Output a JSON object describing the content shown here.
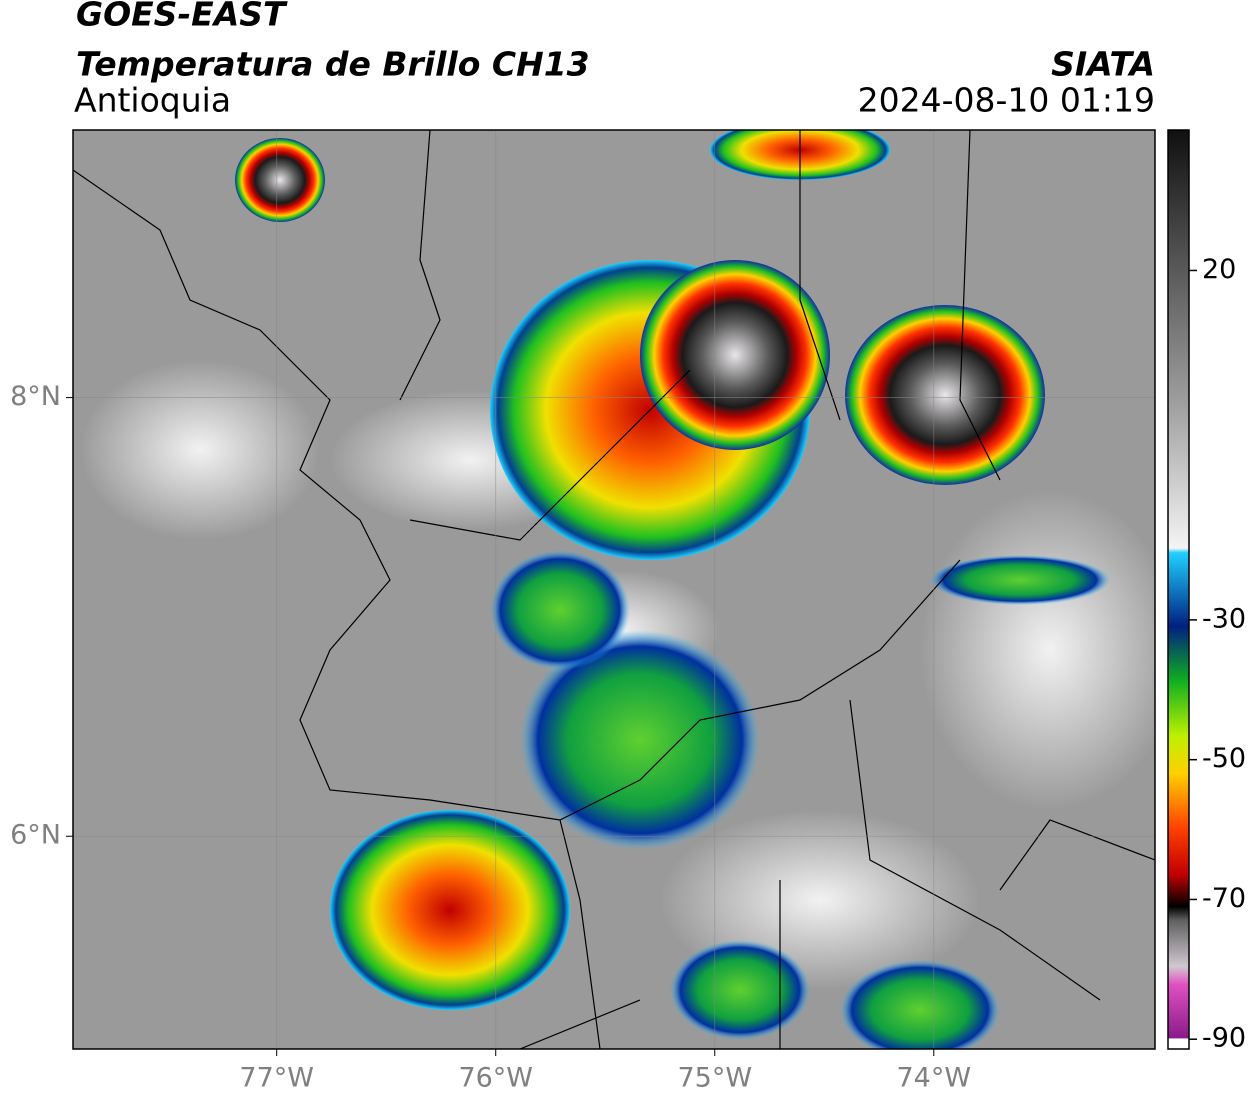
{
  "header": {
    "title": "GOES-EAST",
    "subtitle": "Temperatura de Brillo CH13",
    "region": "Antioquia",
    "source": "SIATA",
    "datetime": "2024-08-10 01:19"
  },
  "map": {
    "xlim": [
      -77.93,
      -72.99
    ],
    "ylim": [
      5.03,
      9.22
    ],
    "xticks": [
      {
        "value": -77,
        "label": "77°W"
      },
      {
        "value": -76,
        "label": "76°W"
      },
      {
        "value": -75,
        "label": "75°W"
      },
      {
        "value": -74,
        "label": "74°W"
      }
    ],
    "yticks": [
      {
        "value": 8,
        "label": "8°N"
      },
      {
        "value": 6,
        "label": "6°N"
      }
    ],
    "grid": true
  },
  "colorbar": {
    "lim": [
      -91.4,
      40.1
    ],
    "ticks": [
      20,
      -30,
      -50,
      -70,
      -90
    ]
  }
}
